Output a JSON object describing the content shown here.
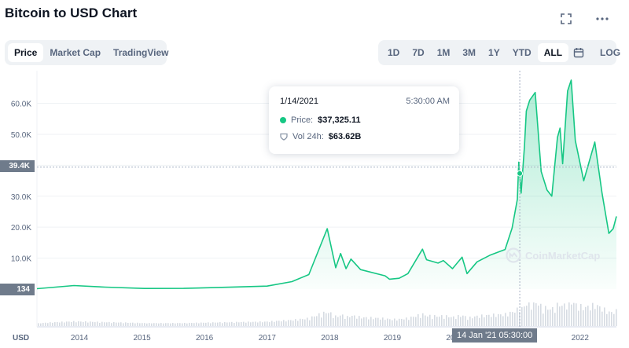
{
  "header": {
    "title": "Bitcoin to USD Chart"
  },
  "icons": {
    "expand": "expand-icon",
    "more": "more-icon",
    "calendar": "calendar-icon"
  },
  "view_tabs": [
    {
      "label": "Price",
      "active": true
    },
    {
      "label": "Market Cap",
      "active": false
    },
    {
      "label": "TradingView",
      "active": false
    }
  ],
  "range_tabs": [
    {
      "label": "1D",
      "active": false
    },
    {
      "label": "7D",
      "active": false
    },
    {
      "label": "1M",
      "active": false
    },
    {
      "label": "3M",
      "active": false
    },
    {
      "label": "1Y",
      "active": false
    },
    {
      "label": "YTD",
      "active": false
    },
    {
      "label": "ALL",
      "active": true
    }
  ],
  "scale_toggle": "LOG",
  "tooltip": {
    "date": "1/14/2021",
    "time": "5:30:00 AM",
    "price_label": "Price:",
    "price_value": "$37,325.11",
    "vol_label": "Vol 24h:",
    "vol_value": "$63.62B"
  },
  "watermark": "CoinMarketCap",
  "colors": {
    "line": "#16c784",
    "fill_top": "#16c784",
    "volume": "#c5ccd6",
    "tag": "#6f7b8b",
    "grid": "#eff2f5"
  },
  "chart_data": {
    "type": "area",
    "title": "",
    "xlabel": "",
    "ylabel": "USD",
    "currency_label": "USD",
    "ylim": [
      0,
      68000
    ],
    "y_ticks": [
      10000,
      20000,
      30000,
      40000,
      50000,
      60000
    ],
    "y_tick_labels": [
      "10.0K",
      "20.0K",
      "30.0K",
      "40.0K",
      "50.0K",
      "60.0K"
    ],
    "x_ticks": [
      "2014",
      "2015",
      "2016",
      "2017",
      "2018",
      "2019",
      "2020",
      "2021",
      "2022"
    ],
    "xlim": [
      "2013-04-28",
      "2022-08-01"
    ],
    "grid": true,
    "crosshair": {
      "date": "2021-01-14",
      "value": 39400,
      "y_label": "39.4K",
      "x_label": "14 Jan '21  05:30:00"
    },
    "min_label": "134",
    "series": [
      {
        "x": [
          "2013-04-28",
          "2013-11-30",
          "2014-06-01",
          "2015-01-15",
          "2015-09-01",
          "2016-06-15",
          "2016-12-31",
          "2017-05-25",
          "2017-09-01",
          "2017-12-17",
          "2018-02-05",
          "2018-03-05",
          "2018-04-06",
          "2018-05-05",
          "2018-06-30",
          "2018-11-20",
          "2018-12-15",
          "2019-02-10",
          "2019-04-02",
          "2019-06-26",
          "2019-07-20",
          "2019-09-25",
          "2019-10-26",
          "2019-12-18",
          "2020-02-12",
          "2020-03-12",
          "2020-05-10",
          "2020-07-27",
          "2020-10-20",
          "2020-11-30",
          "2020-12-31",
          "2021-01-08",
          "2021-01-22",
          "2021-02-10",
          "2021-02-21",
          "2021-03-13",
          "2021-04-14",
          "2021-05-19",
          "2021-06-22",
          "2021-07-20",
          "2021-08-22",
          "2021-09-06",
          "2021-09-21",
          "2021-10-20",
          "2021-11-10",
          "2021-12-04",
          "2022-01-22",
          "2022-03-28",
          "2022-05-09",
          "2022-06-18",
          "2022-07-13",
          "2022-08-01"
        ],
        "values": [
          134,
          1130,
          640,
          210,
          230,
          650,
          960,
          2400,
          4700,
          19500,
          6900,
          11500,
          6600,
          9700,
          6300,
          4300,
          3200,
          3500,
          5000,
          12900,
          9500,
          8400,
          9200,
          6600,
          10300,
          5000,
          8800,
          11000,
          12800,
          19700,
          29000,
          41000,
          31000,
          46000,
          57500,
          61000,
          63500,
          38000,
          32000,
          30000,
          49000,
          52000,
          40500,
          64000,
          67500,
          48000,
          35000,
          47500,
          31000,
          18000,
          19500,
          23500
        ]
      }
    ]
  }
}
